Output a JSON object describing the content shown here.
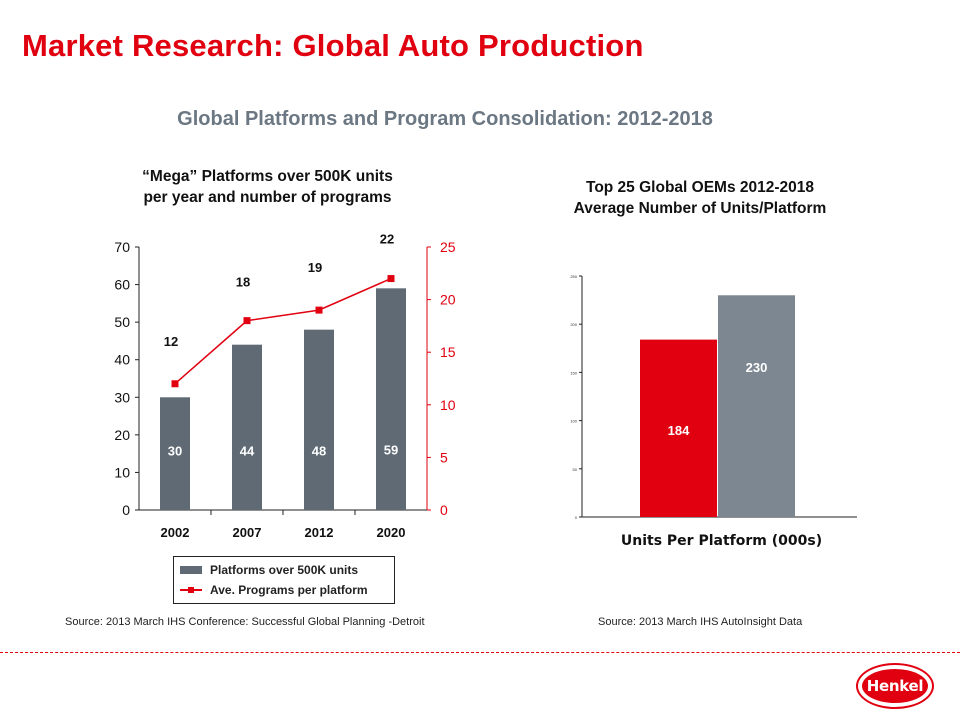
{
  "header": {
    "title": "Market Research: Global Auto Production",
    "subtitle": "Global Platforms and Program Consolidation: 2012-2018"
  },
  "left_panel": {
    "heading_line1": "“Mega” Platforms over 500K units",
    "heading_line2": "per year and number of programs",
    "legend_bar": "Platforms over 500K units",
    "legend_line": "Ave. Programs per platform",
    "source": "Source: 2013 March IHS Conference:  Successful Global Planning -Detroit"
  },
  "right_panel": {
    "heading_line1": "Top 25 Global OEMs 2012-2018",
    "heading_line2": "Average Number of Units/Platform",
    "source": "Source: 2013 March IHS AutoInsight Data"
  },
  "logo": {
    "text": "Henkel"
  },
  "colors": {
    "red": "#e1000f",
    "bar_dark": "#5f6a75",
    "bar_gray": "#7d8791",
    "subtitle_gray": "#6b7782"
  },
  "chart_data": [
    {
      "type": "bar",
      "categories": [
        "2002",
        "2007",
        "2012",
        "2020"
      ],
      "series": [
        {
          "name": "Platforms over 500K units",
          "type": "bar",
          "axis": "left",
          "values": [
            30,
            44,
            48,
            59
          ]
        },
        {
          "name": "Ave. Programs per platform",
          "type": "line",
          "axis": "right",
          "values": [
            12,
            18,
            19,
            22
          ]
        }
      ],
      "ylim_left": [
        0,
        70
      ],
      "yticks_left": [
        "0",
        "10",
        "20",
        "30",
        "40",
        "50",
        "60",
        "70"
      ],
      "ylim_right": [
        0,
        25
      ],
      "yticks_right": [
        "0",
        "5",
        "10",
        "15",
        "20",
        "25"
      ],
      "legend_position": "bottom",
      "grid": false
    },
    {
      "type": "bar",
      "categories": [
        "184",
        "230"
      ],
      "values": [
        184,
        230
      ],
      "xlabel": "Units Per Platform (000s)",
      "ylim": [
        0,
        250
      ],
      "yticks": [
        "0",
        "50",
        "100",
        "150",
        "200",
        "250"
      ],
      "grid": false
    }
  ]
}
